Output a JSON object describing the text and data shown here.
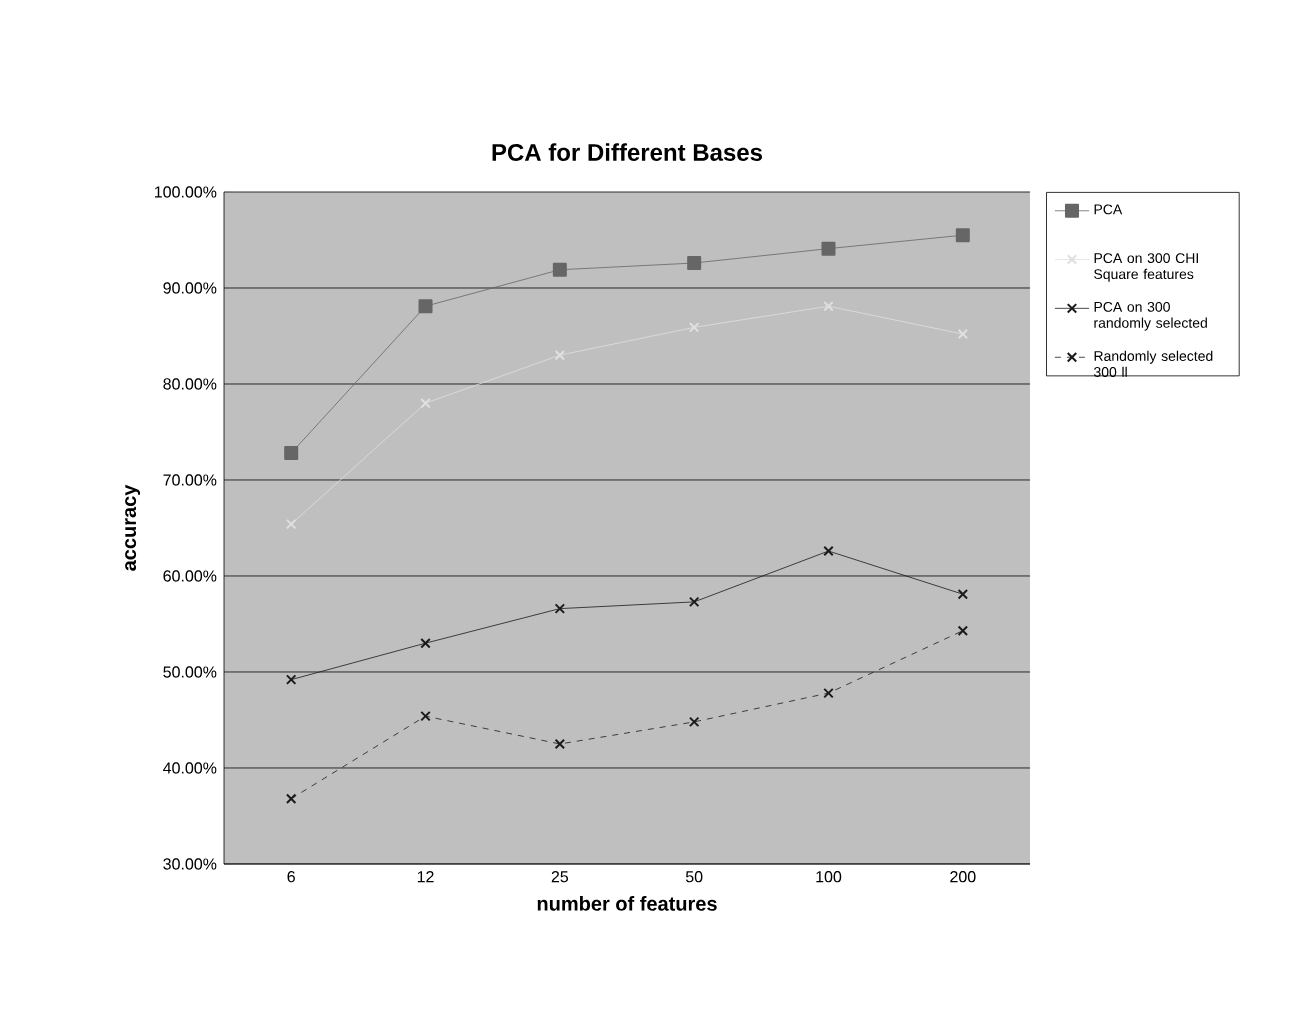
{
  "chart_data": {
    "type": "line",
    "title": "PCA for Different Bases",
    "xlabel": "number of features",
    "ylabel": "accuracy",
    "categories": [
      "6",
      "12",
      "25",
      "50",
      "100",
      "200"
    ],
    "series": [
      {
        "name": "PCA",
        "color": "#666666",
        "marker": "square",
        "line_style": "solid",
        "values": [
          72.8,
          88.1,
          91.9,
          92.6,
          94.1,
          95.5
        ]
      },
      {
        "name": "PCA on 300 CHI Square features",
        "color": "#e0e0e0",
        "marker": "cross",
        "line_style": "solid",
        "values": [
          65.4,
          78.0,
          83.0,
          85.9,
          88.1,
          85.2
        ]
      },
      {
        "name": "PCA on 300 randomly selected",
        "color": "#1a1a1a",
        "marker": "cross",
        "line_style": "solid",
        "values": [
          49.2,
          53.0,
          56.6,
          57.3,
          62.6,
          58.1
        ]
      },
      {
        "name": "Randomly selected 300 ll",
        "color": "#1a1a1a",
        "marker": "cross",
        "line_style": "dashed",
        "values": [
          36.8,
          45.4,
          42.5,
          44.8,
          47.8,
          54.3
        ]
      }
    ],
    "ylim": [
      30,
      100
    ],
    "yticks": [
      {
        "value": 30,
        "label": "30.00%"
      },
      {
        "value": 40,
        "label": "40.00%"
      },
      {
        "value": 50,
        "label": "50.00%"
      },
      {
        "value": 60,
        "label": "60.00%"
      },
      {
        "value": 70,
        "label": "70.00%"
      },
      {
        "value": 80,
        "label": "80.00%"
      },
      {
        "value": 90,
        "label": "90.00%"
      },
      {
        "value": 100,
        "label": "100.00%"
      }
    ],
    "grid": "y",
    "legend": "right"
  }
}
